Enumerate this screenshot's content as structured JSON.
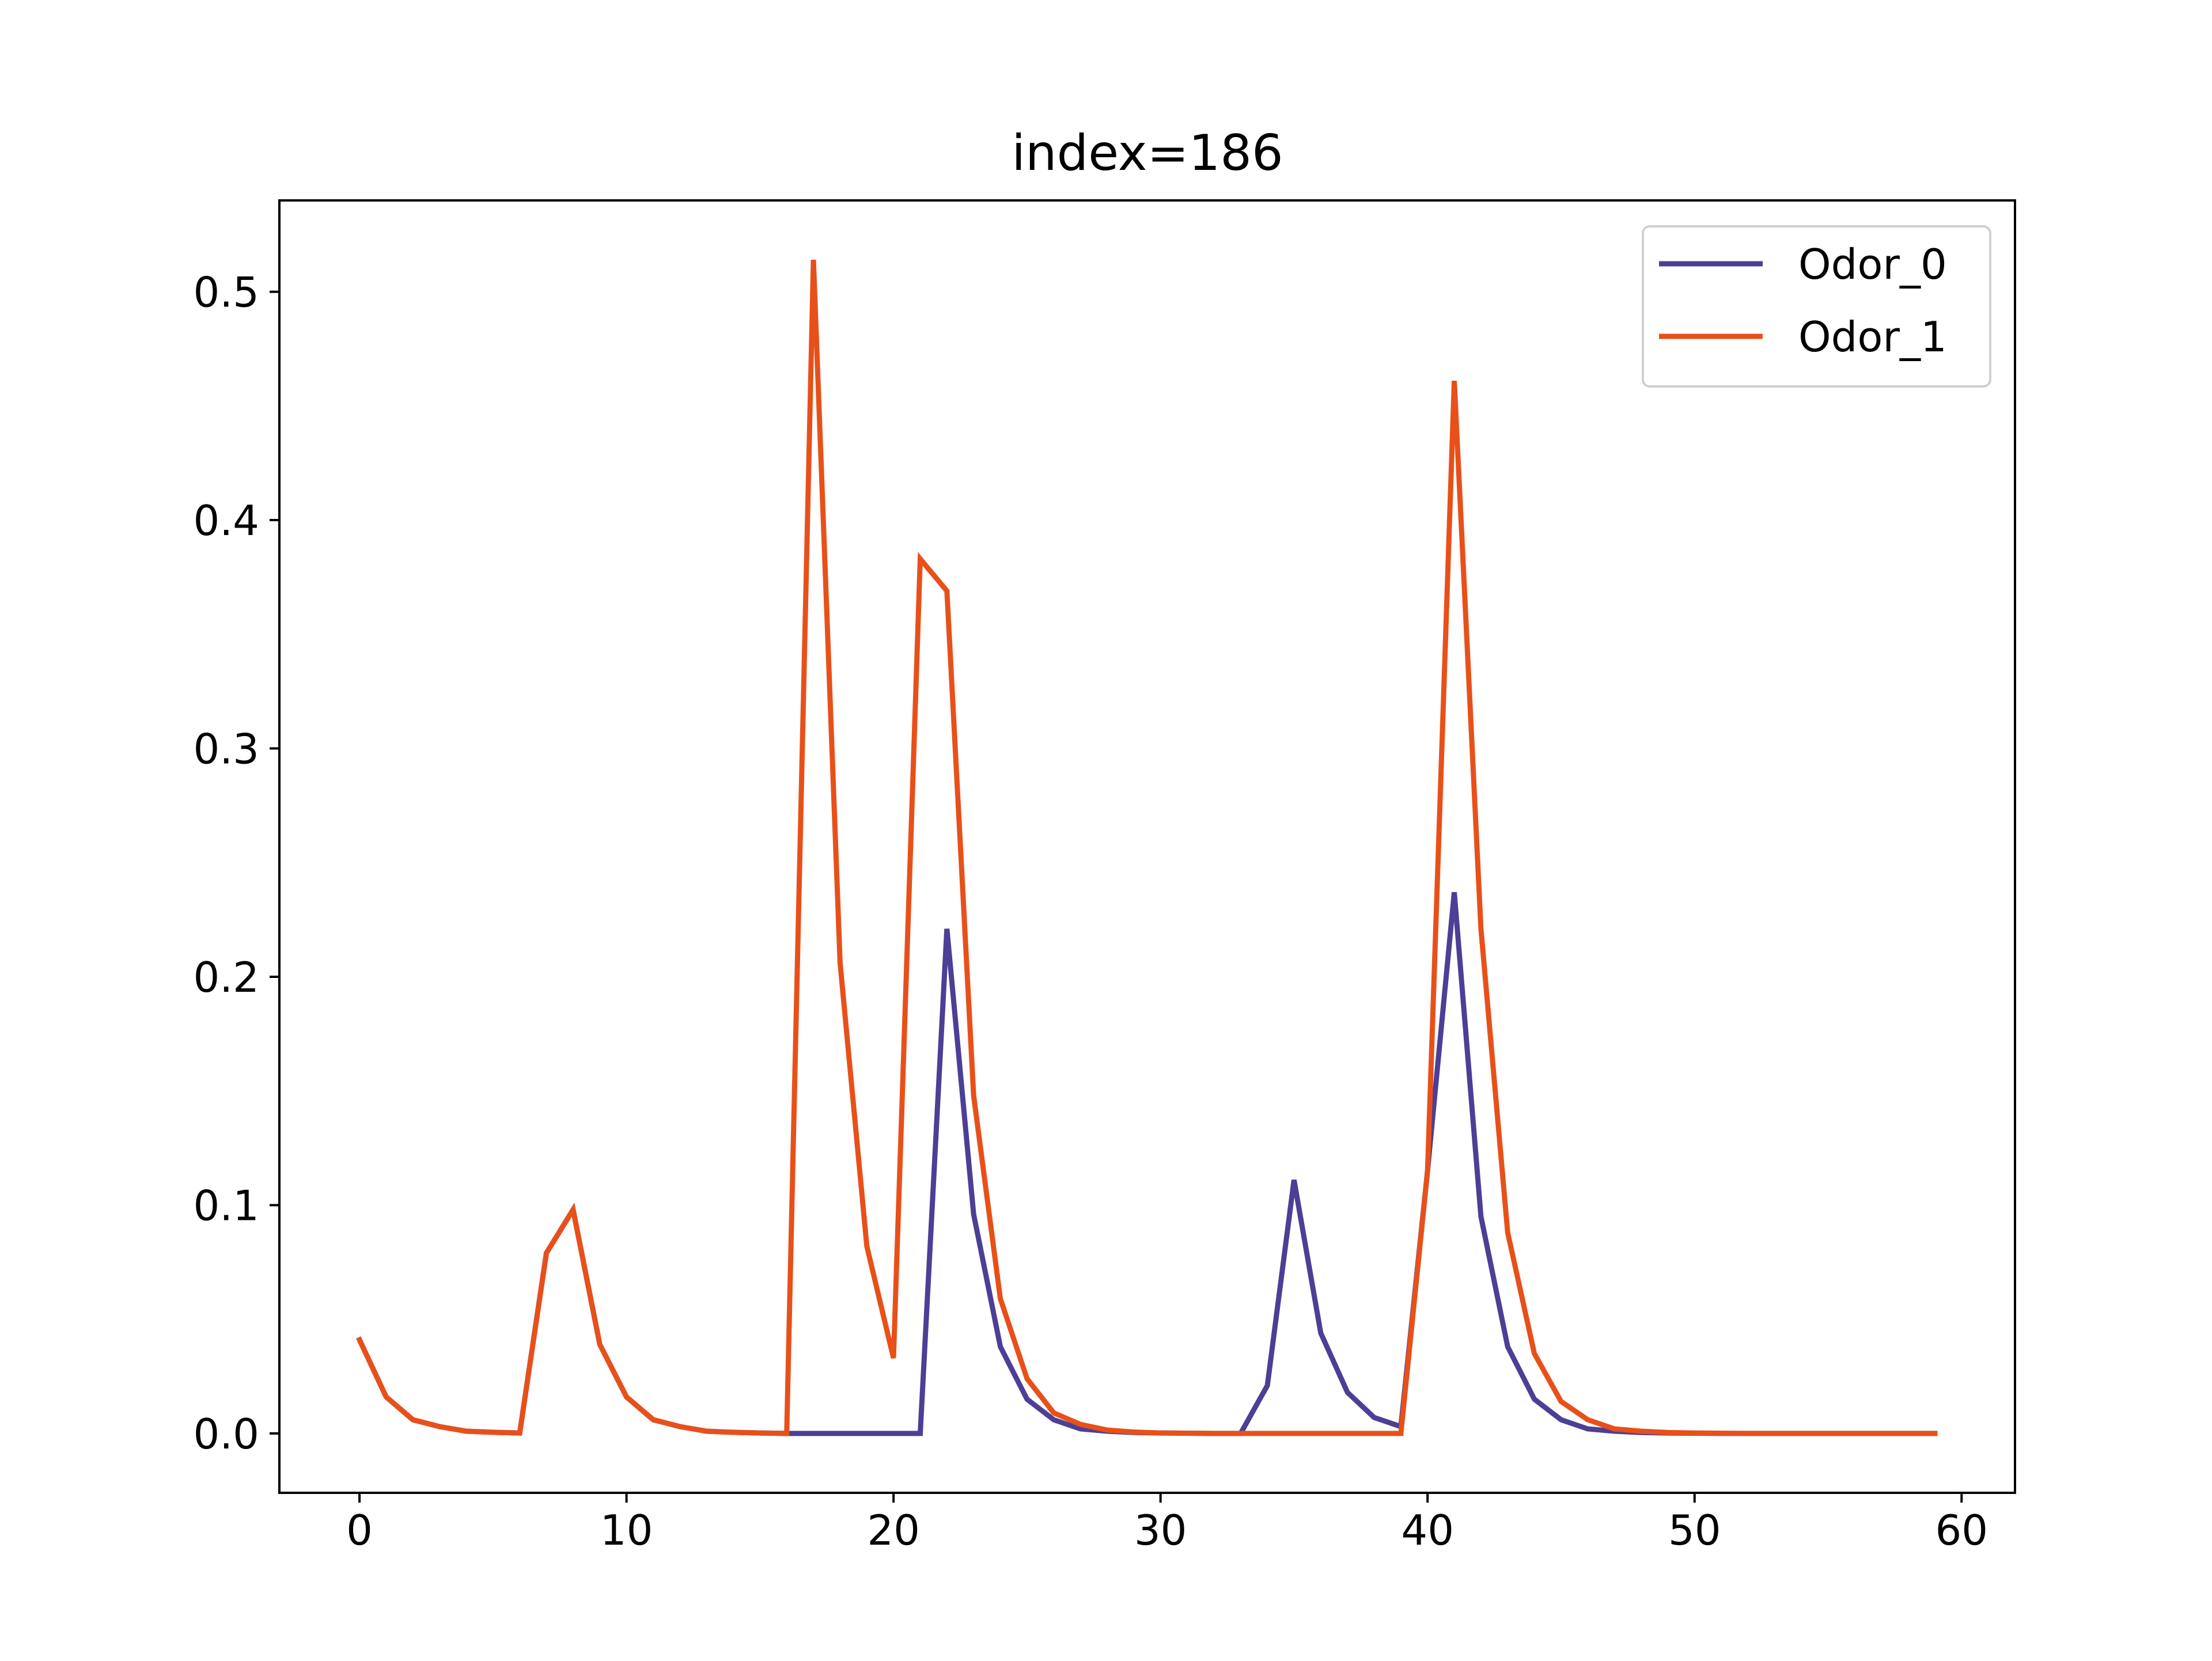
{
  "chart_data": {
    "type": "line",
    "title": "index=186",
    "xlabel": "",
    "ylabel": "",
    "xlim": [
      -3,
      62
    ],
    "ylim": [
      -0.026,
      0.54
    ],
    "xticks": [
      0,
      10,
      20,
      30,
      40,
      50,
      60
    ],
    "yticks": [
      0.0,
      0.1,
      0.2,
      0.3,
      0.4,
      0.5
    ],
    "xtick_labels": [
      "0",
      "10",
      "20",
      "30",
      "40",
      "50",
      "60"
    ],
    "ytick_labels": [
      "0.0",
      "0.1",
      "0.2",
      "0.3",
      "0.4",
      "0.5"
    ],
    "grid": false,
    "legend_position": "top-right",
    "x": [
      0,
      1,
      2,
      3,
      4,
      5,
      6,
      7,
      8,
      9,
      10,
      11,
      12,
      13,
      14,
      15,
      16,
      17,
      18,
      19,
      20,
      21,
      22,
      23,
      24,
      25,
      26,
      27,
      28,
      29,
      30,
      31,
      32,
      33,
      34,
      35,
      36,
      37,
      38,
      39,
      40,
      41,
      42,
      43,
      44,
      45,
      46,
      47,
      48,
      49,
      50,
      51,
      52,
      53,
      54,
      55,
      56,
      57,
      58,
      59
    ],
    "series": [
      {
        "name": "Odor_0",
        "color": "#4b3f96",
        "values": [
          0.041,
          0.016,
          0.006,
          0.003,
          0.001,
          0.0005,
          0.0002,
          0.079,
          0.098,
          0.039,
          0.016,
          0.006,
          0.003,
          0.001,
          0.0005,
          0.0002,
          0.0,
          0.0,
          0.0,
          0.0,
          0.0,
          0.0,
          0.221,
          0.096,
          0.038,
          0.015,
          0.006,
          0.002,
          0.001,
          0.0004,
          0.0002,
          0.0001,
          0.0,
          0.0,
          0.021,
          0.111,
          0.044,
          0.018,
          0.007,
          0.003,
          0.115,
          0.237,
          0.095,
          0.038,
          0.015,
          0.006,
          0.002,
          0.001,
          0.0004,
          0.0002,
          0.0001,
          0.0,
          0.0,
          0.0,
          0.0,
          0.0,
          0.0,
          0.0,
          0.0,
          0.0
        ]
      },
      {
        "name": "Odor_1",
        "color": "#e8501a",
        "values": [
          0.041,
          0.016,
          0.006,
          0.003,
          0.001,
          0.0005,
          0.0002,
          0.079,
          0.098,
          0.039,
          0.016,
          0.006,
          0.003,
          0.001,
          0.0005,
          0.0002,
          0.0,
          0.514,
          0.206,
          0.082,
          0.033,
          0.383,
          0.369,
          0.148,
          0.059,
          0.024,
          0.009,
          0.004,
          0.0015,
          0.0006,
          0.0002,
          0.0001,
          0.0,
          0.0,
          0.0,
          0.0,
          0.0,
          0.0,
          0.0,
          0.0,
          0.115,
          0.461,
          0.221,
          0.088,
          0.035,
          0.014,
          0.006,
          0.002,
          0.001,
          0.0004,
          0.0002,
          0.0001,
          0.0,
          0.0,
          0.0,
          0.0,
          0.0,
          0.0,
          0.0,
          0.0
        ]
      }
    ]
  }
}
